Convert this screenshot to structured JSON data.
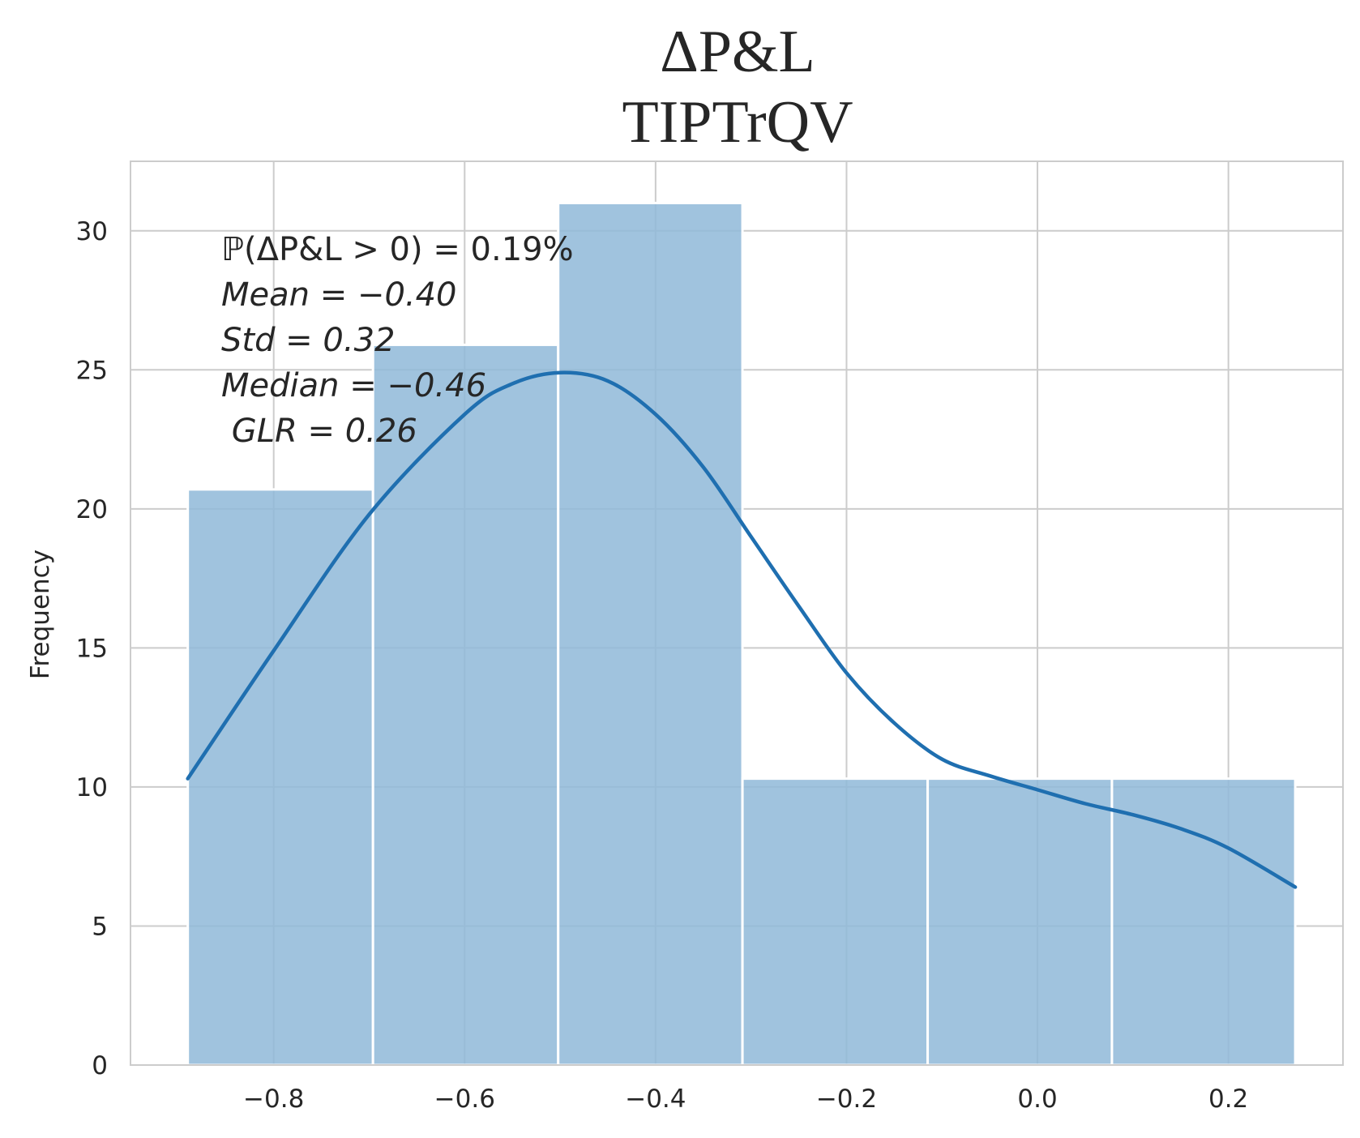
{
  "chart_data": {
    "type": "bar",
    "subtype": "histogram-with-kde",
    "title": "ΔP&L",
    "subtitle": "TIPTrQV",
    "xlabel": "",
    "ylabel": "Frequency",
    "xlim": [
      -0.95,
      0.32
    ],
    "ylim": [
      0,
      32.5
    ],
    "x_ticks": [
      -0.8,
      -0.6,
      -0.4,
      -0.2,
      0.0,
      0.2
    ],
    "x_tick_labels": [
      "−0.8",
      "−0.6",
      "−0.4",
      "−0.2",
      "0.0",
      "0.2"
    ],
    "y_ticks": [
      0,
      5,
      10,
      15,
      20,
      25,
      30
    ],
    "y_tick_labels": [
      "0",
      "5",
      "10",
      "15",
      "20",
      "25",
      "30"
    ],
    "grid": true,
    "bins": [
      {
        "x0": -0.89,
        "x1": -0.696,
        "value": 20.7
      },
      {
        "x0": -0.696,
        "x1": -0.502,
        "value": 25.9
      },
      {
        "x0": -0.502,
        "x1": -0.309,
        "value": 31.0
      },
      {
        "x0": -0.309,
        "x1": -0.115,
        "value": 10.3
      },
      {
        "x0": -0.115,
        "x1": 0.078,
        "value": 10.3
      },
      {
        "x0": 0.078,
        "x1": 0.27,
        "value": 10.3
      }
    ],
    "kde": {
      "x": [
        -0.89,
        -0.8,
        -0.7,
        -0.6,
        -0.55,
        -0.5,
        -0.45,
        -0.4,
        -0.35,
        -0.3,
        -0.25,
        -0.2,
        -0.15,
        -0.1,
        -0.05,
        0.0,
        0.05,
        0.1,
        0.15,
        0.2,
        0.27
      ],
      "y": [
        10.3,
        14.9,
        19.8,
        23.4,
        24.5,
        24.9,
        24.6,
        23.4,
        21.5,
        19.0,
        16.5,
        14.1,
        12.3,
        11.0,
        10.4,
        9.9,
        9.4,
        9.0,
        8.5,
        7.8,
        6.4
      ]
    },
    "annotations": [
      "ℙ(ΔP&L > 0) = 0.19%",
      "Mean = −0.40",
      "Std = 0.32",
      "Median = −0.46",
      " GLR = 0.26"
    ],
    "colors": {
      "bar_fill": "#8fb8d8",
      "bar_edge": "#ffffff",
      "kde_line": "#1f6fb0",
      "grid": "#cccccc",
      "text": "#262626",
      "axes_edge": "#cccccc"
    }
  }
}
